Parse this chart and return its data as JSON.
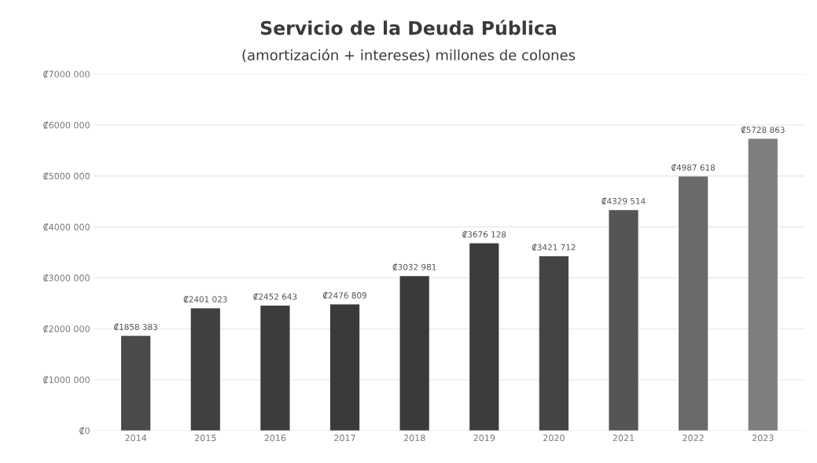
{
  "chart_data": {
    "type": "bar",
    "title": "Servicio de la Deuda Pública",
    "subtitle": "(amortización + intereses) millones de colones",
    "categories": [
      "2014",
      "2015",
      "2016",
      "2017",
      "2018",
      "2019",
      "2020",
      "2021",
      "2022",
      "2023"
    ],
    "values": [
      1858383,
      2401023,
      2452643,
      2476809,
      3032981,
      3676128,
      3421712,
      4329514,
      4987618,
      5728863
    ],
    "value_labels": [
      "₡1858 383",
      "₡2401 023",
      "₡2452 643",
      "₡2476 809",
      "₡3032 981",
      "₡3676 128",
      "₡3421 712",
      "₡4329 514",
      "₡4987 618",
      "₡5728 863"
    ],
    "colors": [
      "#4a4a4a",
      "#404040",
      "#3c3c3c",
      "#3a3a3a",
      "#3a3a3a",
      "#3c3c3c",
      "#444444",
      "#555555",
      "#6a6a6a",
      "#7e7e7e"
    ],
    "ylim": [
      0,
      7000000
    ],
    "yticks": [
      {
        "value": 0,
        "label": "₡0"
      },
      {
        "value": 1000000,
        "label": "₡1000 000"
      },
      {
        "value": 2000000,
        "label": "₡2000 000"
      },
      {
        "value": 3000000,
        "label": "₡3000 000"
      },
      {
        "value": 4000000,
        "label": "₡4000 000"
      },
      {
        "value": 5000000,
        "label": "₡5000 000"
      },
      {
        "value": 6000000,
        "label": "₡6000 000"
      },
      {
        "value": 7000000,
        "label": "₡7000 000"
      }
    ],
    "grid": "y"
  }
}
